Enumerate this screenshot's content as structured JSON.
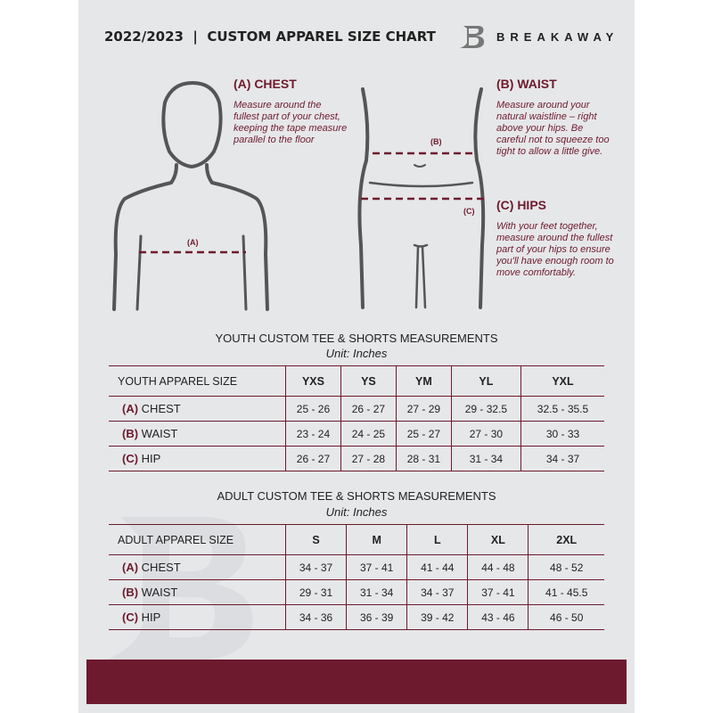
{
  "header": {
    "title": "2022/2023  |  CUSTOM APPAREL SIZE CHART",
    "brand": "BREAKAWAY"
  },
  "guides": {
    "chest": {
      "heading": "(A) CHEST",
      "text": "Measure around the fullest part of your chest, keeping the tape measure parallel to the floor",
      "marker": "(A)"
    },
    "waist": {
      "heading": "(B) WAIST",
      "text": "Measure around your natural waistline – right above your hips. Be careful not to squeeze too tight to allow a little give.",
      "marker": "(B)"
    },
    "hips": {
      "heading": "(C) HIPS",
      "text": "With your feet together, measure around the fullest part of your hips to ensure you'll have enough room to move comfortably.",
      "marker": "(C)"
    }
  },
  "youth": {
    "title": "YOUTH CUSTOM TEE & SHORTS MEASUREMENTS",
    "unit": "Unit: Inches",
    "header": [
      "YOUTH APPAREL SIZE",
      "YXS",
      "YS",
      "YM",
      "YL",
      "YXL"
    ],
    "rows": [
      {
        "letter": "(A)",
        "label": "CHEST",
        "values": [
          "25 - 26",
          "26 - 27",
          "27 - 29",
          "29 - 32.5",
          "32.5 - 35.5"
        ]
      },
      {
        "letter": "(B)",
        "label": "WAIST",
        "values": [
          "23 - 24",
          "24 - 25",
          "25 - 27",
          "27 - 30",
          "30 - 33"
        ]
      },
      {
        "letter": "(C)",
        "label": "HIP",
        "values": [
          "26 - 27",
          "27 - 28",
          "28 - 31",
          "31 - 34",
          "34 - 37"
        ]
      }
    ]
  },
  "adult": {
    "title": "ADULT CUSTOM TEE & SHORTS MEASUREMENTS",
    "unit": "Unit: Inches",
    "header": [
      "ADULT APPAREL SIZE",
      "S",
      "M",
      "L",
      "XL",
      "2XL"
    ],
    "rows": [
      {
        "letter": "(A)",
        "label": "CHEST",
        "values": [
          "34 - 37",
          "37 - 41",
          "41 - 44",
          "44 - 48",
          "48 - 52"
        ]
      },
      {
        "letter": "(B)",
        "label": "WAIST",
        "values": [
          "29 - 31",
          "31 - 34",
          "34 - 37",
          "37 - 41",
          "41 - 45.5"
        ]
      },
      {
        "letter": "(C)",
        "label": "HIP",
        "values": [
          "34 - 36",
          "36 - 39",
          "39 - 42",
          "43 - 46",
          "46 - 50"
        ]
      }
    ]
  },
  "colors": {
    "accent": "#6e1a2e",
    "background": "#e6e7e9"
  }
}
